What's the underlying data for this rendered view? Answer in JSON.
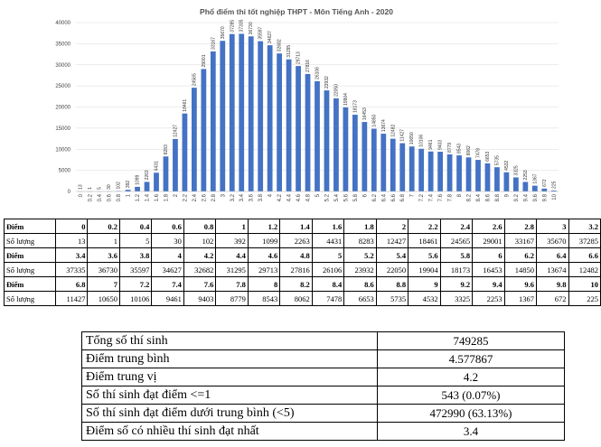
{
  "chart_data": {
    "type": "bar",
    "title": "Phổ điểm thi tốt nghiệp THPT - Môn Tiếng Anh - 2020",
    "categories": [
      "0",
      "0.2",
      "0.4",
      "0.6",
      "0.8",
      "1",
      "1.2",
      "1.4",
      "1.6",
      "1.8",
      "2",
      "2.2",
      "2.4",
      "2.6",
      "2.8",
      "3",
      "3.2",
      "3.4",
      "3.6",
      "3.8",
      "4",
      "4.2",
      "4.4",
      "4.6",
      "4.8",
      "5",
      "5.2",
      "5.4",
      "5.6",
      "5.8",
      "6",
      "6.2",
      "6.4",
      "6.6",
      "6.8",
      "7",
      "7.2",
      "7.4",
      "7.6",
      "7.8",
      "8",
      "8.2",
      "8.4",
      "8.6",
      "8.8",
      "9",
      "9.2",
      "9.4",
      "9.6",
      "9.8",
      "10"
    ],
    "values": [
      13,
      1,
      5,
      30,
      102,
      392,
      1099,
      2263,
      4431,
      8283,
      12427,
      18461,
      24565,
      29001,
      33167,
      35670,
      37285,
      37335,
      36730,
      35597,
      34627,
      32682,
      31295,
      29713,
      27816,
      26106,
      23932,
      22050,
      19904,
      18173,
      16453,
      14850,
      13674,
      12482,
      11427,
      10650,
      10106,
      9461,
      9403,
      8779,
      8543,
      8062,
      7478,
      6653,
      5735,
      4532,
      3325,
      2253,
      1367,
      672,
      225
    ],
    "value_labels": [
      "13",
      "1",
      "5",
      "30",
      "102",
      "392",
      "1099",
      "2263",
      "4431",
      "8283",
      "12427",
      "18461",
      "24565",
      "29001",
      "33167",
      "35670",
      "37285",
      "37335",
      "36730",
      "35597",
      "34627",
      "32682",
      "31295",
      "29713",
      "27816",
      "26106",
      "23932",
      "22050",
      "19904",
      "18173",
      "16453",
      "14850",
      "13674",
      "12482",
      "11427",
      "10650",
      "10106",
      "9461",
      "9403",
      "8779",
      "8543",
      "8062",
      "7478",
      "6653",
      "5735",
      "4532",
      "3325",
      "2253",
      "1367",
      "672",
      "225"
    ],
    "ylim": [
      0,
      40000
    ],
    "yticks": [
      "0",
      "5000",
      "10000",
      "15000",
      "20000",
      "25000",
      "30000",
      "35000",
      "40000"
    ],
    "grid": true,
    "bar_color": "#4472c4"
  },
  "distribution_table": {
    "rows": [
      {
        "label": "Điểm",
        "cells": [
          "0",
          "0.2",
          "0.4",
          "0.6",
          "0.8",
          "1",
          "1.2",
          "1.4",
          "1.6",
          "1.8",
          "2",
          "2.2",
          "2.4",
          "2.6",
          "2.8",
          "3",
          "3.2"
        ]
      },
      {
        "label": "Số lượng",
        "cells": [
          "13",
          "1",
          "5",
          "30",
          "102",
          "392",
          "1099",
          "2263",
          "4431",
          "8283",
          "12427",
          "18461",
          "24565",
          "29001",
          "33167",
          "35670",
          "37285"
        ]
      },
      {
        "label": "Điểm",
        "cells": [
          "3.4",
          "3.6",
          "3.8",
          "4",
          "4.2",
          "4.4",
          "4.6",
          "4.8",
          "5",
          "5.2",
          "5.4",
          "5.6",
          "5.8",
          "6",
          "6.2",
          "6.4",
          "6.6"
        ]
      },
      {
        "label": "Số lượng",
        "cells": [
          "37335",
          "36730",
          "35597",
          "34627",
          "32682",
          "31295",
          "29713",
          "27816",
          "26106",
          "23932",
          "22050",
          "19904",
          "18173",
          "16453",
          "14850",
          "13674",
          "12482"
        ]
      },
      {
        "label": "Điểm",
        "cells": [
          "6.8",
          "7",
          "7.2",
          "7.4",
          "7.6",
          "7.8",
          "8",
          "8.2",
          "8.4",
          "8.6",
          "8.8",
          "9",
          "9.2",
          "9.4",
          "9.6",
          "9.8",
          "10"
        ]
      },
      {
        "label": "Số lượng",
        "cells": [
          "11427",
          "10650",
          "10106",
          "9461",
          "9403",
          "8779",
          "8543",
          "8062",
          "7478",
          "6653",
          "5735",
          "4532",
          "3325",
          "2253",
          "1367",
          "672",
          "225"
        ]
      }
    ]
  },
  "summary": {
    "rows": [
      {
        "label": "Tổng số thí sinh",
        "value": "749285"
      },
      {
        "label": "Điểm trung bình",
        "value": "4.577867"
      },
      {
        "label": "Điểm trung vị",
        "value": "4.2"
      },
      {
        "label": "Số thí sinh đạt điểm <=1",
        "value": "543 (0.07%)"
      },
      {
        "label": "Số thí sinh đạt điểm dưới trung bình (<5)",
        "value": "472990 (63.13%)"
      },
      {
        "label": "Điểm số có nhiều thí sinh đạt nhất",
        "value": "3.4"
      }
    ]
  }
}
